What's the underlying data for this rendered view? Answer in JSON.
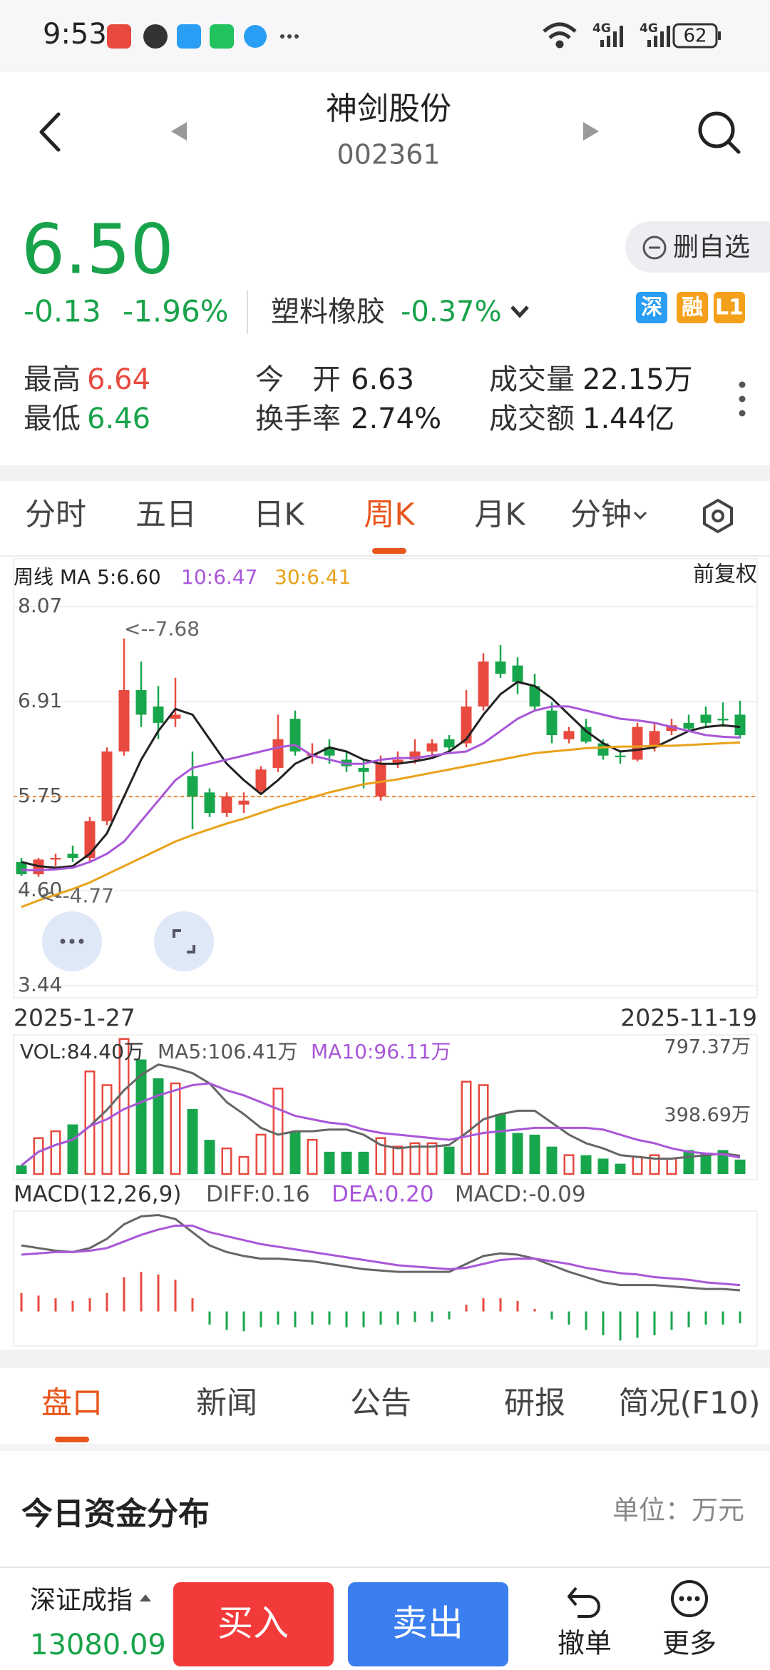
{
  "status_bar": {
    "time": "9:53",
    "network": [
      "4G",
      "4G"
    ],
    "battery": "62"
  },
  "header": {
    "title": "神剑股份",
    "code": "002361"
  },
  "quote": {
    "price": "6.50",
    "change": "-0.13",
    "change_pct": "-1.96%",
    "sector": "塑料橡胶",
    "sector_change": "-0.37%",
    "watch_button": "删自选",
    "badges": [
      {
        "text": "深",
        "color": "#2a9df4"
      },
      {
        "text": "融",
        "color": "#f5a01a"
      },
      {
        "text": "L1",
        "color": "#f5a01a"
      }
    ]
  },
  "stats": [
    {
      "label": "最高",
      "value": "6.64",
      "color": "#e84a3f"
    },
    {
      "label": "最低",
      "value": "6.46",
      "color": "#18a34a"
    },
    {
      "label": "今　开",
      "value": "6.63",
      "color": "#222222"
    },
    {
      "label": "换手率",
      "value": "2.74%",
      "color": "#222222"
    },
    {
      "label": "成交量",
      "value": "22.15万",
      "color": "#222222"
    },
    {
      "label": "成交额",
      "value": "1.44亿",
      "color": "#222222"
    }
  ],
  "period_tabs": {
    "items": [
      "分时",
      "五日",
      "日K",
      "周K",
      "月K",
      "分钟"
    ],
    "selected": 3
  },
  "chart_data": [
    {
      "type": "candlestick",
      "legend": [
        "周线 MA 5:6.60",
        "10:6.47",
        "30:6.41"
      ],
      "legend_colors": [
        "#222222",
        "#a957d8",
        "#e9a21a"
      ],
      "adjust": "前复权",
      "categories": [
        "2025-1-27",
        null,
        null,
        null,
        null,
        null,
        null,
        null,
        null,
        null,
        null,
        null,
        null,
        null,
        null,
        null,
        null,
        null,
        null,
        null,
        null,
        null,
        null,
        null,
        null,
        null,
        null,
        null,
        null,
        null,
        null,
        null,
        null,
        null,
        null,
        null,
        null,
        null,
        null,
        null,
        null,
        null,
        "2025-11-19"
      ],
      "open": [
        4.95,
        4.8,
        4.98,
        5.05,
        5.0,
        5.45,
        6.3,
        7.05,
        6.85,
        6.7,
        6.0,
        5.8,
        5.55,
        5.65,
        5.82,
        6.1,
        6.7,
        6.25,
        6.35,
        6.2,
        6.1,
        5.75,
        6.15,
        6.2,
        6.3,
        6.45,
        6.4,
        6.85,
        7.4,
        7.35,
        7.1,
        6.8,
        6.45,
        6.6,
        6.4,
        6.25,
        6.2,
        6.35,
        6.55,
        6.65,
        6.75,
        6.7,
        6.75
      ],
      "high": [
        5.0,
        5.0,
        5.05,
        5.15,
        5.5,
        6.35,
        7.68,
        7.4,
        7.1,
        7.2,
        6.3,
        5.85,
        5.8,
        5.8,
        6.12,
        6.75,
        6.8,
        6.4,
        6.45,
        6.3,
        6.2,
        6.25,
        6.3,
        6.45,
        6.45,
        6.5,
        7.05,
        7.5,
        7.6,
        7.45,
        7.25,
        6.9,
        6.6,
        6.7,
        6.45,
        6.3,
        6.65,
        6.65,
        6.7,
        6.75,
        6.85,
        6.9,
        6.92
      ],
      "low": [
        4.78,
        4.77,
        4.9,
        4.95,
        4.95,
        5.4,
        6.25,
        6.6,
        6.45,
        6.6,
        5.35,
        5.5,
        5.5,
        5.55,
        5.78,
        6.05,
        6.25,
        6.15,
        6.15,
        6.05,
        5.85,
        5.7,
        6.1,
        6.15,
        6.25,
        6.3,
        6.35,
        6.8,
        7.2,
        7.0,
        6.8,
        6.4,
        6.4,
        6.4,
        6.2,
        6.15,
        6.18,
        6.3,
        6.5,
        6.55,
        6.6,
        6.6,
        6.46
      ],
      "close": [
        4.8,
        4.98,
        5.0,
        5.0,
        5.45,
        6.3,
        7.05,
        6.75,
        6.65,
        6.75,
        5.75,
        5.55,
        5.75,
        5.7,
        6.08,
        6.45,
        6.3,
        6.27,
        6.25,
        6.12,
        6.05,
        6.15,
        6.2,
        6.3,
        6.4,
        6.35,
        6.85,
        7.4,
        7.25,
        7.15,
        6.85,
        6.5,
        6.55,
        6.42,
        6.25,
        6.23,
        6.6,
        6.55,
        6.62,
        6.58,
        6.65,
        6.68,
        6.5
      ],
      "lines": [
        {
          "color": "#222222",
          "values": [
            4.95,
            4.9,
            4.88,
            4.9,
            5.05,
            5.3,
            5.75,
            6.2,
            6.55,
            6.82,
            6.75,
            6.45,
            6.15,
            5.95,
            5.78,
            5.95,
            6.15,
            6.25,
            6.35,
            6.3,
            6.2,
            6.15,
            6.15,
            6.18,
            6.22,
            6.3,
            6.45,
            6.75,
            7.0,
            7.15,
            7.1,
            6.95,
            6.75,
            6.55,
            6.4,
            6.3,
            6.32,
            6.35,
            6.45,
            6.55,
            6.6,
            6.62,
            6.6
          ]
        },
        {
          "color": "#a957d8",
          "values": [
            4.85,
            4.85,
            4.86,
            4.88,
            4.95,
            5.05,
            5.2,
            5.45,
            5.7,
            5.95,
            6.1,
            6.15,
            6.2,
            6.25,
            6.3,
            6.35,
            6.38,
            6.25,
            6.2,
            6.15,
            6.15,
            6.2,
            6.22,
            6.22,
            6.25,
            6.28,
            6.3,
            6.4,
            6.55,
            6.7,
            6.8,
            6.85,
            6.85,
            6.8,
            6.75,
            6.7,
            6.68,
            6.65,
            6.6,
            6.55,
            6.5,
            6.48,
            6.47
          ]
        },
        {
          "color": "#e9a21a",
          "values": [
            4.4,
            4.48,
            4.55,
            4.62,
            4.7,
            4.8,
            4.9,
            5.0,
            5.1,
            5.2,
            5.28,
            5.35,
            5.42,
            5.48,
            5.55,
            5.62,
            5.68,
            5.74,
            5.8,
            5.85,
            5.9,
            5.93,
            5.96,
            6.0,
            6.04,
            6.08,
            6.12,
            6.16,
            6.2,
            6.24,
            6.28,
            6.3,
            6.32,
            6.34,
            6.35,
            6.36,
            6.36,
            6.37,
            6.37,
            6.38,
            6.39,
            6.4,
            6.41
          ]
        }
      ],
      "up_color": "#e84a3f",
      "down_color": "#18a64c",
      "annotations": [
        {
          "text": "<--7.68",
          "value": 7.68,
          "at": "high"
        },
        {
          "text": "<--4.77",
          "value": 4.77,
          "at": "low"
        }
      ],
      "reference_line": 5.75,
      "ylim": [
        3.44,
        8.07
      ],
      "yticks": [
        8.07,
        6.91,
        5.75,
        {
          "value": 4.6,
          "label": "4.60"
        },
        3.44
      ],
      "grid": true
    },
    {
      "type": "bar",
      "legend": [
        "VOL:84.40万",
        "MA5:106.41万",
        "MA10:96.11万"
      ],
      "legend_colors": [
        "#333333",
        "#555555",
        "#a957d8"
      ],
      "values": [
        50,
        210,
        250,
        290,
        600,
        520,
        790,
        670,
        560,
        530,
        380,
        200,
        150,
        100,
        230,
        500,
        250,
        200,
        130,
        130,
        130,
        210,
        160,
        180,
        180,
        160,
        540,
        520,
        350,
        240,
        230,
        160,
        110,
        110,
        90,
        60,
        100,
        110,
        90,
        140,
        120,
        140,
        84.4
      ],
      "lines": [
        {
          "color": "#666666",
          "values": [
            50,
            130,
            170,
            200,
            280,
            375,
            490,
            580,
            640,
            620,
            590,
            530,
            420,
            350,
            270,
            230,
            250,
            250,
            260,
            260,
            230,
            170,
            150,
            160,
            160,
            170,
            240,
            320,
            350,
            370,
            370,
            300,
            230,
            180,
            150,
            110,
            100,
            90,
            90,
            100,
            110,
            120,
            106.41
          ]
        },
        {
          "color": "#a957d8",
          "values": [
            50,
            130,
            170,
            200,
            280,
            320,
            380,
            420,
            460,
            490,
            520,
            530,
            490,
            460,
            420,
            380,
            340,
            320,
            300,
            290,
            260,
            240,
            230,
            220,
            210,
            200,
            220,
            240,
            250,
            260,
            270,
            270,
            270,
            270,
            260,
            230,
            200,
            180,
            150,
            130,
            120,
            115,
            96.11
          ]
        }
      ],
      "hollow_up": true,
      "ylim": [
        0,
        797.37
      ],
      "yticks": [
        {
          "value": 797.37,
          "label": "797.37万"
        },
        {
          "value": 398.69,
          "label": "398.69万"
        }
      ],
      "grid": false
    },
    {
      "type": "macd",
      "legend": [
        "MACD(12,26,9)",
        "DIFF:0.16",
        "DEA:0.20",
        "MACD:-0.09"
      ],
      "legend_colors": [
        "#333333",
        "#555555",
        "#a957d8",
        "#555555"
      ],
      "values": [
        0.14,
        0.12,
        0.1,
        0.08,
        0.1,
        0.14,
        0.26,
        0.3,
        0.28,
        0.24,
        0.1,
        -0.1,
        -0.14,
        -0.15,
        -0.12,
        -0.1,
        -0.12,
        -0.1,
        -0.1,
        -0.12,
        -0.12,
        -0.1,
        -0.1,
        -0.08,
        -0.08,
        -0.06,
        0.05,
        0.1,
        0.1,
        0.08,
        0.02,
        -0.06,
        -0.1,
        -0.14,
        -0.18,
        -0.22,
        -0.2,
        -0.18,
        -0.14,
        -0.12,
        -0.1,
        -0.1,
        -0.09
      ],
      "lines": [
        {
          "color": "#666666",
          "values": [
            0.5,
            0.48,
            0.46,
            0.45,
            0.48,
            0.55,
            0.66,
            0.72,
            0.73,
            0.7,
            0.6,
            0.5,
            0.45,
            0.42,
            0.4,
            0.4,
            0.39,
            0.38,
            0.36,
            0.34,
            0.32,
            0.31,
            0.3,
            0.3,
            0.3,
            0.3,
            0.36,
            0.42,
            0.44,
            0.43,
            0.4,
            0.35,
            0.3,
            0.26,
            0.22,
            0.2,
            0.2,
            0.2,
            0.19,
            0.18,
            0.17,
            0.17,
            0.16
          ]
        },
        {
          "color": "#a957d8",
          "values": [
            0.43,
            0.44,
            0.45,
            0.45,
            0.46,
            0.48,
            0.53,
            0.58,
            0.62,
            0.65,
            0.65,
            0.6,
            0.57,
            0.54,
            0.51,
            0.49,
            0.47,
            0.45,
            0.43,
            0.41,
            0.39,
            0.37,
            0.35,
            0.34,
            0.33,
            0.32,
            0.33,
            0.36,
            0.39,
            0.4,
            0.4,
            0.38,
            0.36,
            0.33,
            0.31,
            0.29,
            0.28,
            0.26,
            0.25,
            0.24,
            0.22,
            0.21,
            0.2
          ]
        }
      ],
      "up_color": "#e84a3f",
      "down_color": "#18a64c",
      "ylim": [
        -0.24,
        0.76
      ]
    }
  ],
  "detail_tabs": {
    "items": [
      "盘口",
      "新闻",
      "公告",
      "研报",
      "简况(F10)"
    ],
    "selected": 0
  },
  "section": {
    "title": "今日资金分布",
    "unit": "单位：万元"
  },
  "footer": {
    "index_name": "深证成指",
    "index_value": "13080.09",
    "buy": "买入",
    "sell": "卖出",
    "cancel": "撤单",
    "more": "更多"
  }
}
